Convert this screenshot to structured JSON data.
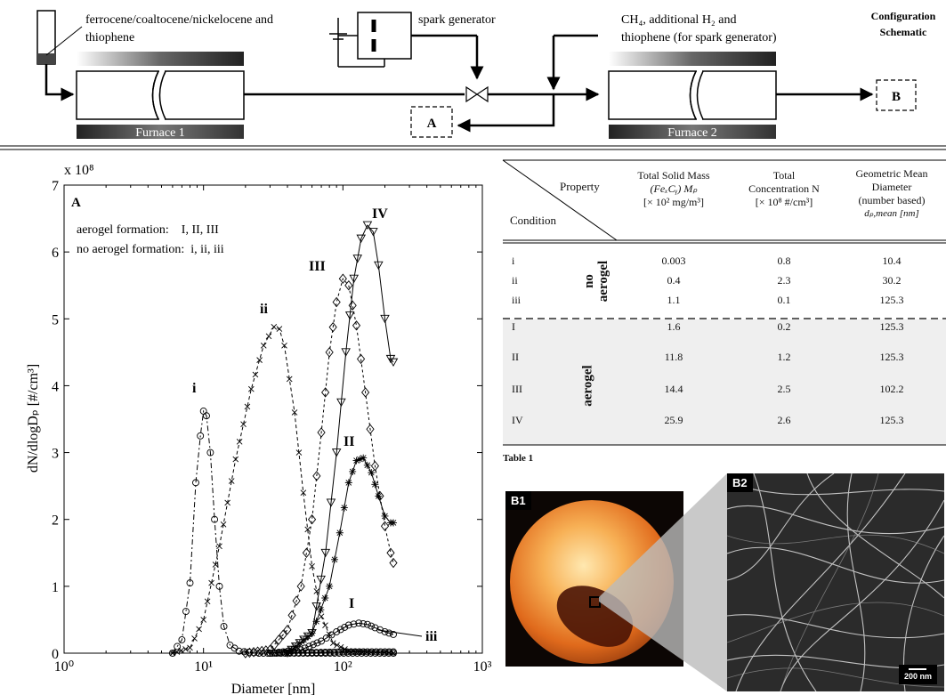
{
  "schematic": {
    "precursor_label_1": "ferrocene/coaltocene/nickelocene and",
    "precursor_label_2": "thiophene",
    "spark_label": "spark generator",
    "gas_label_1": "CH₄, additional H₂ and",
    "gas_label_2": "thiophene (for spark generator)",
    "furnace1": "Furnace 1",
    "furnace2": "Furnace 2",
    "outlet_a": "A",
    "outlet_b": "B",
    "title_1": "Configuration",
    "title_2": "Schematic"
  },
  "chart": {
    "panel": "A",
    "ylabel": "dN/dlogDₚ [#/cm³]",
    "xlabel": "Diameter [nm]",
    "yexp": "x 10⁸",
    "legend_1": "aerogel formation:    I, II, III",
    "legend_2": "no aerogel formation:  i, ii, iii",
    "xticks": [
      "10⁰",
      "10¹",
      "10²",
      "10³"
    ],
    "yticks": [
      "0",
      "1",
      "2",
      "3",
      "4",
      "5",
      "6",
      "7"
    ]
  },
  "chart_data": {
    "type": "line",
    "xscale": "log",
    "xlim": [
      1,
      1000
    ],
    "ylim": [
      0,
      7
    ],
    "xlabel": "Diameter [nm]",
    "ylabel": "dN/dlogDp [#/cm3]",
    "series": [
      {
        "name": "i",
        "marker": "circle",
        "dash": "6 3 2 3",
        "x": [
          6.0,
          7.0,
          8.0,
          8.8,
          9.5,
          10.0,
          10.5,
          11.2,
          12.0,
          13.0,
          14.0,
          15.5,
          18.0,
          25.0,
          60.0,
          230.0
        ],
        "y": [
          0,
          0.2,
          1.05,
          2.55,
          3.25,
          3.62,
          3.55,
          3.0,
          2.0,
          1.0,
          0.4,
          0.12,
          0.03,
          0,
          0,
          0
        ]
      },
      {
        "name": "ii",
        "marker": "x",
        "dash": "4 3",
        "x": [
          6.0,
          8.0,
          10.0,
          13.0,
          17.0,
          22.0,
          27.0,
          32.0,
          35.0,
          38.0,
          45.0,
          52.0,
          60.0,
          70.0,
          85.0,
          110.0,
          230.0
        ],
        "y": [
          0,
          0.08,
          0.5,
          1.6,
          2.9,
          3.95,
          4.6,
          4.88,
          4.85,
          4.6,
          3.6,
          2.4,
          1.3,
          0.55,
          0.15,
          0.03,
          0
        ]
      },
      {
        "name": "iii",
        "marker": "circle",
        "dash": "",
        "x": [
          30.0,
          60.0,
          100.0,
          150.0,
          200.0,
          230.0
        ],
        "y": [
          0,
          0.01,
          0.02,
          0.02,
          0.02,
          0.02
        ]
      },
      {
        "name": "I",
        "marker": "circle",
        "dash": "",
        "x": [
          30.0,
          50.0,
          70.0,
          90.0,
          110.0,
          130.0,
          150.0,
          170.0,
          200.0,
          230.0
        ],
        "y": [
          0,
          0.05,
          0.18,
          0.32,
          0.42,
          0.45,
          0.43,
          0.38,
          0.32,
          0.28
        ]
      },
      {
        "name": "II",
        "marker": "star",
        "dash": "",
        "x": [
          40.0,
          60.0,
          80.0,
          95.0,
          110.0,
          125.0,
          140.0,
          160.0,
          180.0,
          200.0,
          220.0,
          230.0
        ],
        "y": [
          0,
          0.3,
          1.0,
          1.8,
          2.55,
          2.88,
          2.92,
          2.7,
          2.35,
          2.05,
          1.95,
          1.95
        ]
      },
      {
        "name": "III",
        "marker": "diamond",
        "dash": "3 3",
        "x": [
          20.0,
          30.0,
          40.0,
          50.0,
          60.0,
          70.0,
          80.0,
          90.0,
          100.0,
          110.0,
          125.0,
          145.0,
          170.0,
          200.0,
          220.0,
          230.0
        ],
        "y": [
          0,
          0.05,
          0.35,
          1.0,
          2.0,
          3.3,
          4.5,
          5.25,
          5.6,
          5.5,
          4.9,
          3.9,
          2.8,
          1.9,
          1.5,
          1.35
        ]
      },
      {
        "name": "IV",
        "marker": "triangle",
        "dash": "",
        "x": [
          40.0,
          60.0,
          75.0,
          90.0,
          105.0,
          120.0,
          135.0,
          150.0,
          165.0,
          180.0,
          200.0,
          220.0,
          230.0
        ],
        "y": [
          0,
          0.3,
          1.5,
          3.0,
          4.5,
          5.6,
          6.2,
          6.4,
          6.3,
          5.8,
          5.0,
          4.4,
          4.35
        ]
      }
    ]
  },
  "table": {
    "hdr_property": "Property",
    "hdr_condition": "Condition",
    "col1_l1": "Total Solid Mass",
    "col1_l2": "(FeₓCᵧ) Mₚ",
    "col1_l3": "[× 10² mg/m³]",
    "col2_l1": "Total",
    "col2_l2": "Concentration  N",
    "col2_l3": "[× 10⁸ #/cm³]",
    "col3_l1": "Geometric Mean",
    "col3_l2": "Diameter",
    "col3_l3": "(number based)",
    "col3_l4": "dₚ,mean   [nm]",
    "group_no_1": "no",
    "group_no_2": "aerogel",
    "group_yes": "aerogel",
    "rows": [
      {
        "cond": "i",
        "mass": "0.003",
        "conc": "0.8",
        "dia": "10.4"
      },
      {
        "cond": "ii",
        "mass": "0.4",
        "conc": "2.3",
        "dia": "30.2"
      },
      {
        "cond": "iii",
        "mass": "1.1",
        "conc": "0.1",
        "dia": "125.3"
      },
      {
        "cond": "I",
        "mass": "1.6",
        "conc": "0.2",
        "dia": "125.3"
      },
      {
        "cond": "II",
        "mass": "11.8",
        "conc": "1.2",
        "dia": "125.3"
      },
      {
        "cond": "III",
        "mass": "14.4",
        "conc": "2.5",
        "dia": "102.2"
      },
      {
        "cond": "IV",
        "mass": "25.9",
        "conc": "2.6",
        "dia": "125.3"
      }
    ],
    "caption": "Table 1"
  },
  "photos": {
    "b1": "B1",
    "b2": "B2",
    "scale": "200 nm"
  },
  "colors": {
    "ink": "#111111",
    "table_shade": "#efefef"
  }
}
